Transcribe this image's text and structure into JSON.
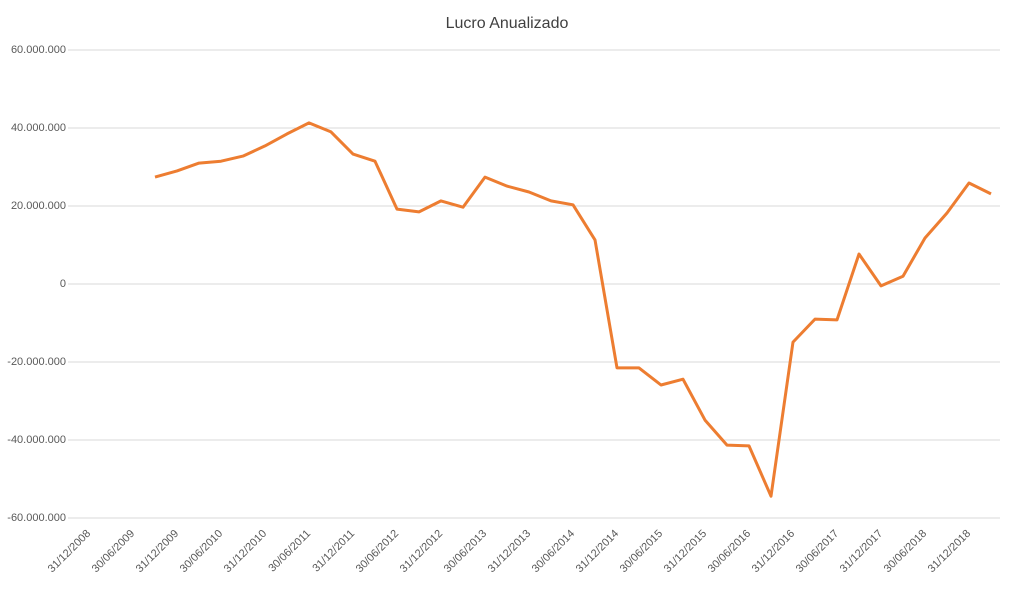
{
  "chart_data": {
    "type": "line",
    "title": "Lucro Anualizado",
    "categories": [
      "31/12/2008",
      null,
      "30/06/2009",
      null,
      "31/12/2009",
      null,
      "30/06/2010",
      null,
      "31/12/2010",
      null,
      "30/06/2011",
      null,
      "31/12/2011",
      null,
      "30/06/2012",
      null,
      "31/12/2012",
      null,
      "30/06/2013",
      null,
      "31/12/2013",
      null,
      "30/06/2014",
      null,
      "31/12/2014",
      null,
      "30/06/2015",
      null,
      "31/12/2015",
      null,
      "30/06/2016",
      null,
      "31/12/2016",
      null,
      "30/06/2017",
      null,
      "31/12/2017",
      null,
      "30/06/2018",
      null,
      "31/12/2018",
      null
    ],
    "series": [
      {
        "name": "Lucro Anualizado",
        "color": "#ed7d31",
        "values": [
          null,
          null,
          null,
          27400000,
          29000000,
          31000000,
          31500000,
          32800000,
          35400000,
          38500000,
          41300000,
          39000000,
          33300000,
          31500000,
          19200000,
          18500000,
          21300000,
          19700000,
          27400000,
          25100000,
          23600000,
          21300000,
          20300000,
          11300000,
          -21500000,
          -21500000,
          -25900000,
          -24400000,
          -34900000,
          -41300000,
          -41500000,
          -54400000,
          -14900000,
          -9000000,
          -9200000,
          7700000,
          -500000,
          2000000,
          11800000,
          18200000,
          25900000,
          23100000
        ]
      }
    ],
    "ylim": [
      -60000000,
      60000000
    ],
    "yticks": [
      {
        "value": -60000000,
        "label": "-60.000.000"
      },
      {
        "value": -40000000,
        "label": "-40.000.000"
      },
      {
        "value": -20000000,
        "label": "-20.000.000"
      },
      0,
      {
        "value": 20000000,
        "label": "20.000.000"
      },
      {
        "value": 40000000,
        "label": "40.000.000"
      },
      {
        "value": 60000000,
        "label": "60.000.000"
      }
    ],
    "grid": true
  }
}
